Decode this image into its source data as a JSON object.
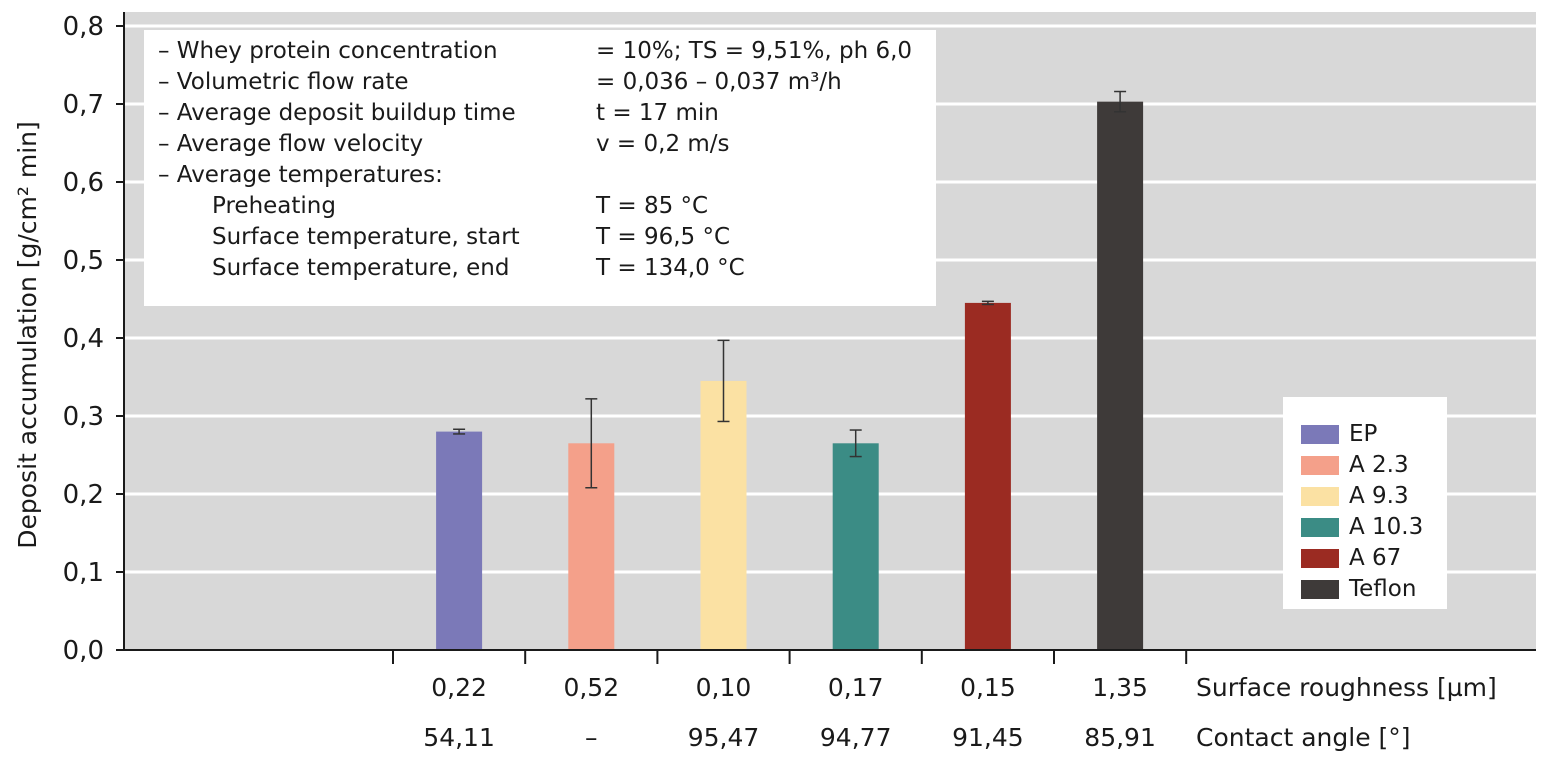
{
  "chart_data": {
    "type": "bar",
    "ylabel": "Deposit accumulation [g/cm² min]",
    "ylim": [
      0,
      0.8
    ],
    "yticks": [
      "0,0",
      "0,1",
      "0,2",
      "0,3",
      "0,4",
      "0,5",
      "0,6",
      "0,7",
      "0,8"
    ],
    "grid": true,
    "bars": [
      {
        "name": "EP",
        "value": 0.28,
        "error": 0.003,
        "color": "#7b79b8"
      },
      {
        "name": "A 2.3",
        "value": 0.265,
        "error": 0.057,
        "color": "#f4a08a"
      },
      {
        "name": "A 9.3",
        "value": 0.345,
        "error": 0.052,
        "color": "#fbe1a3"
      },
      {
        "name": "A 10.3",
        "value": 0.265,
        "error": 0.017,
        "color": "#3b8c85"
      },
      {
        "name": "A 67",
        "value": 0.445,
        "error": 0.002,
        "color": "#9b2b22"
      },
      {
        "name": "Teflon",
        "value": 0.703,
        "error": 0.013,
        "color": "#3e3a39"
      }
    ],
    "rows": [
      {
        "label": "Surface roughness [µm]",
        "values": [
          "0,22",
          "0,52",
          "0,10",
          "0,17",
          "0,15",
          "1,35"
        ]
      },
      {
        "label": "Contact angle [°]",
        "values": [
          "54,11",
          "–",
          "95,47",
          "94,77",
          "91,45",
          "85,91"
        ]
      }
    ],
    "legend_placement": "right",
    "legend": [
      "EP",
      "A 2.3",
      "A 9.3",
      "A 10.3",
      "A 67",
      "Teflon"
    ],
    "annotation": [
      {
        "key": "– Whey protein concentration",
        "value": "= 10%; TS = 9,51%, ph 6,0"
      },
      {
        "key": "– Volumetric flow rate",
        "value": "= 0,036 – 0,037 m³/h"
      },
      {
        "key": "– Average deposit buildup time",
        "value": "t = 17 min"
      },
      {
        "key": "– Average flow velocity",
        "value": "v = 0,2 m/s"
      },
      {
        "key": "– Average temperatures:",
        "value": ""
      },
      {
        "key": "Preheating",
        "value": "T = 85 °C",
        "indent": true
      },
      {
        "key": "Surface temperature, start",
        "value": "T = 96,5 °C",
        "indent": true
      },
      {
        "key": "Surface temperature, end",
        "value": "T = 134,0 °C",
        "indent": true
      }
    ]
  }
}
